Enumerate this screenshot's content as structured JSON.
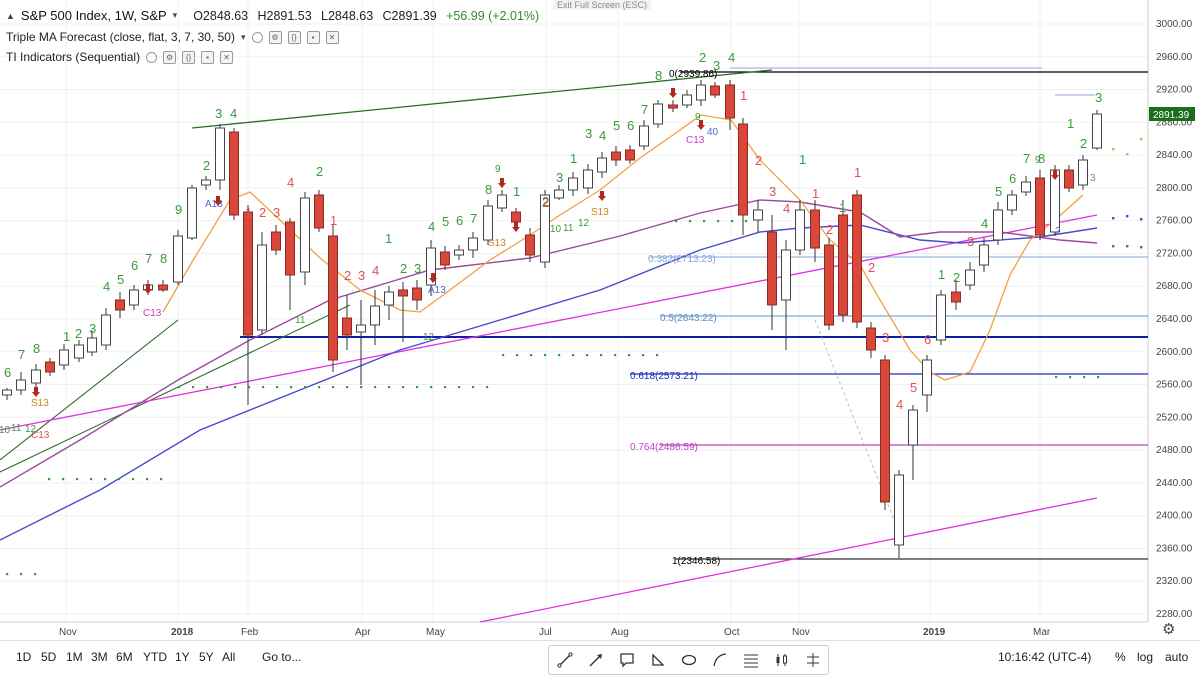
{
  "header": {
    "symbol": "S&P 500 Index, 1W, S&P",
    "open": "O2848.63",
    "high": "H2891.53",
    "low": "L2848.63",
    "close": "C2891.39",
    "change": "+56.99 (+2.01%)",
    "exit_hint": "Exit Full Screen (ESC)",
    "indicator1": "Triple MA Forecast (close, flat, 3, 7, 30, 50)",
    "indicator2": "TI Indicators (Sequential)"
  },
  "price_axis": {
    "labels": [
      "3000.00",
      "2960.00",
      "2920.00",
      "2880.00",
      "2840.00",
      "2800.00",
      "2760.00",
      "2720.00",
      "2680.00",
      "2640.00",
      "2600.00",
      "2560.00",
      "2520.00",
      "2480.00",
      "2440.00",
      "2400.00",
      "2360.00",
      "2320.00",
      "2280.00"
    ],
    "last_price": "2891.39",
    "last_price_color": "#1b6e1b"
  },
  "time_axis": [
    "Nov",
    "2018",
    "Feb",
    "Apr",
    "May",
    "Jul",
    "Aug",
    "Oct",
    "Nov",
    "2019",
    "Mar"
  ],
  "fib_levels": [
    {
      "label": "0(2939.86)",
      "color": "#000000"
    },
    {
      "label": "0.382(2713.23)",
      "color": "#7fa9d6"
    },
    {
      "label": "0.5(2643.22)",
      "color": "#5a8fc8"
    },
    {
      "label": "0.618(2573.21)",
      "color": "#1f2fbf"
    },
    {
      "label": "0.764(2486.59)",
      "color": "#c23fc2"
    },
    {
      "label": "1(2346.58)",
      "color": "#000000"
    }
  ],
  "sequential_labels": {
    "green": [
      "6",
      "7",
      "8",
      "1",
      "2",
      "3",
      "4",
      "5",
      "6",
      "7",
      "8",
      "9",
      "3",
      "4",
      "2",
      "3",
      "4",
      "1",
      "2",
      "3",
      "4",
      "5",
      "6",
      "8",
      "1",
      "2",
      "3",
      "4",
      "5",
      "6",
      "7",
      "8",
      "2",
      "3",
      "4",
      "1",
      "1",
      "1",
      "2",
      "5",
      "6",
      "7",
      "8",
      "1",
      "2",
      "3"
    ],
    "red": [
      "1",
      "2",
      "3",
      "4",
      "1",
      "2",
      "3",
      "4",
      "1",
      "2",
      "3",
      "4",
      "1",
      "2",
      "3",
      "1",
      "1",
      "2",
      "3",
      "4",
      "5",
      "6",
      "9"
    ],
    "markers": [
      "C13",
      "S13",
      "A13",
      "C13",
      "A13",
      "S13",
      "S13",
      "C13",
      "A13",
      "12",
      "11",
      "10",
      "11",
      "12",
      "10",
      "9",
      "40",
      "2",
      "3"
    ]
  },
  "bottom": {
    "timeframes": [
      "1D",
      "5D",
      "1M",
      "3M",
      "6M",
      "YTD",
      "1Y",
      "5Y",
      "All"
    ],
    "goto": "Go to...",
    "clock": "10:16:42 (UTC-4)",
    "percent": "%",
    "log": "log",
    "auto": "auto"
  },
  "tools": [
    "trend-line-tool",
    "arrow-tool",
    "callout-tool",
    "triangle-tool",
    "ellipse-tool",
    "curve-tool",
    "fib-retracement-tool",
    "bar-pattern-tool",
    "long-position-tool"
  ],
  "colors": {
    "up": "#ffffff",
    "down": "#d9483b",
    "green": "#3a9a3a",
    "red": "#e05050",
    "ma_orange": "#f0a040",
    "ma_purple": "#9b4a9b",
    "ma_blue": "#4a4acf"
  }
}
